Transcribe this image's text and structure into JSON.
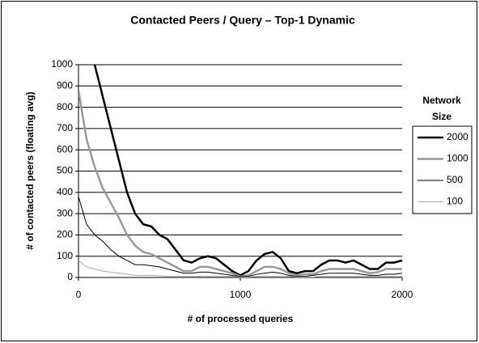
{
  "chart_data": {
    "type": "line",
    "title": "Contacted Peers / Query – Top-1 Dynamic",
    "x_label": "# of processed queries",
    "y_label": "# of contacted peers (floating avg)",
    "legend_title": [
      "Network",
      "Size"
    ],
    "legend": "right",
    "grid": true,
    "xlim": [
      0,
      2000
    ],
    "xticks": [
      0,
      1000,
      2000
    ],
    "ylim": [
      0,
      1000
    ],
    "yticks": [
      0,
      100,
      200,
      300,
      400,
      500,
      600,
      700,
      800,
      900,
      1000
    ],
    "x": [
      0,
      50,
      100,
      150,
      200,
      250,
      300,
      350,
      400,
      450,
      500,
      550,
      600,
      650,
      700,
      750,
      800,
      850,
      900,
      950,
      1000,
      1050,
      1100,
      1150,
      1200,
      1250,
      1300,
      1350,
      1400,
      1450,
      1500,
      1550,
      1600,
      1650,
      1700,
      1750,
      1800,
      1850,
      1900,
      1950,
      2000
    ],
    "series": [
      {
        "name": "2000",
        "color": "#000000",
        "width": 2.5,
        "values": [
          null,
          null,
          1000,
          850,
          700,
          550,
          400,
          300,
          250,
          240,
          200,
          180,
          130,
          80,
          70,
          90,
          100,
          90,
          60,
          30,
          10,
          30,
          80,
          110,
          120,
          90,
          30,
          20,
          30,
          30,
          60,
          80,
          80,
          70,
          80,
          60,
          40,
          40,
          70,
          70,
          80
        ]
      },
      {
        "name": "1000",
        "color": "#999999",
        "width": 2.5,
        "values": [
          880,
          650,
          520,
          420,
          350,
          280,
          200,
          150,
          120,
          110,
          90,
          70,
          50,
          30,
          30,
          50,
          50,
          40,
          30,
          20,
          5,
          10,
          30,
          50,
          50,
          40,
          20,
          10,
          15,
          15,
          30,
          40,
          40,
          40,
          40,
          30,
          20,
          25,
          40,
          40,
          40
        ]
      },
      {
        "name": "500",
        "color": "#000000",
        "width": 1,
        "values": [
          380,
          250,
          200,
          170,
          130,
          100,
          80,
          60,
          60,
          55,
          50,
          40,
          30,
          20,
          20,
          25,
          25,
          20,
          15,
          10,
          5,
          5,
          15,
          20,
          25,
          20,
          10,
          5,
          5,
          10,
          15,
          20,
          20,
          20,
          20,
          15,
          10,
          10,
          15,
          15,
          20
        ]
      },
      {
        "name": "100",
        "color": "#aaaaaa",
        "width": 1,
        "values": [
          80,
          50,
          40,
          30,
          25,
          20,
          15,
          10,
          10,
          10,
          8,
          5,
          5,
          5,
          5,
          5,
          5,
          5,
          5,
          5,
          2,
          2,
          5,
          5,
          5,
          5,
          5,
          2,
          2,
          2,
          5,
          5,
          5,
          5,
          5,
          5,
          5,
          5,
          5,
          5,
          5
        ]
      }
    ]
  }
}
